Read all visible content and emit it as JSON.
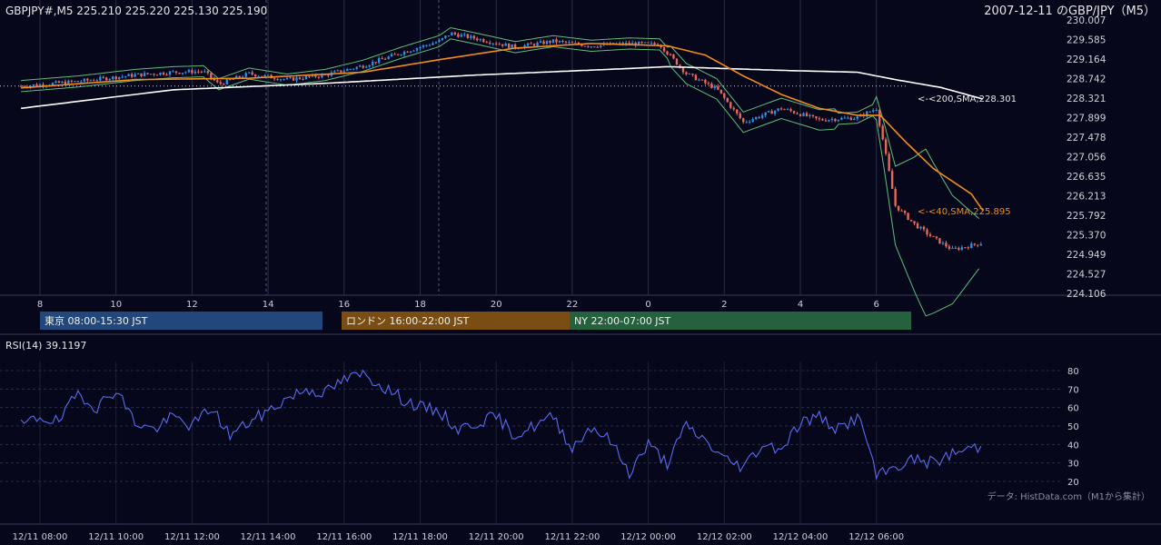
{
  "header": {
    "symbol_info": "GBPJPY#,M5 225.210 225.220 225.130 225.190",
    "title": "2007-12-11 のGBP/JPY（M5）"
  },
  "rsi": {
    "label": "RSI(14) 39.1197",
    "y_ticks": [
      "80",
      "70",
      "60",
      "50",
      "40",
      "30",
      "20"
    ]
  },
  "price_axis": {
    "ticks": [
      "230.007",
      "229.585",
      "229.164",
      "228.742",
      "228.321",
      "227.899",
      "227.478",
      "227.056",
      "226.635",
      "226.213",
      "225.792",
      "225.370",
      "224.949",
      "224.527",
      "224.106"
    ]
  },
  "hour_axis": {
    "ticks": [
      "8",
      "10",
      "12",
      "14",
      "16",
      "18",
      "20",
      "22",
      "0",
      "2",
      "4",
      "6"
    ]
  },
  "time_axis": {
    "ticks": [
      "12/11 08:00",
      "12/11 10:00",
      "12/11 12:00",
      "12/11 14:00",
      "12/11 16:00",
      "12/11 18:00",
      "12/11 20:00",
      "12/11 22:00",
      "12/12 00:00",
      "12/12 02:00",
      "12/12 04:00",
      "12/12 06:00"
    ]
  },
  "sessions": [
    {
      "label": "東京 08:00-15:30 JST",
      "color": "#22477a"
    },
    {
      "label": "ロンドン 16:00-22:00 JST",
      "color": "#7a4d12"
    },
    {
      "label": "NY 22:00-07:00 JST",
      "color": "#25613c"
    }
  ],
  "annotations": {
    "sma200": "<-<200,SMA,228.301",
    "sma40": "<-<40,SMA,225.895"
  },
  "source_note": "データ: HistData.com（M1から集計）",
  "colors": {
    "background": "#06071a",
    "bull": "#2f8fe6",
    "bear": "#e8685c",
    "sma40": "#f08c1e",
    "sma200": "#ffffff",
    "bands": "#5fbf7a",
    "rsi_line": "#5a6cf0"
  },
  "chart_data": [
    {
      "type": "candlestick",
      "title": "2007-12-11 のGBP/JPY（M5）",
      "x_unit": "hours since 12/11 07:30 JST",
      "ylim": [
        224.106,
        230.007
      ],
      "series": [
        {
          "name": "SMA 40",
          "last": 225.895
        },
        {
          "name": "SMA 200",
          "last": 228.301
        }
      ],
      "close_path": [
        [
          0,
          228.58
        ],
        [
          1.5,
          228.68
        ],
        [
          3,
          228.82
        ],
        [
          4,
          228.88
        ],
        [
          4.8,
          228.9
        ],
        [
          5.2,
          228.62
        ],
        [
          6,
          228.85
        ],
        [
          7,
          228.72
        ],
        [
          8,
          228.82
        ],
        [
          9,
          229.02
        ],
        [
          10,
          229.3
        ],
        [
          11,
          229.55
        ],
        [
          11.3,
          229.72
        ],
        [
          12,
          229.6
        ],
        [
          13,
          229.42
        ],
        [
          14,
          229.55
        ],
        [
          15,
          229.45
        ],
        [
          16,
          229.5
        ],
        [
          16.8,
          229.48
        ],
        [
          17.5,
          228.85
        ],
        [
          18.3,
          228.52
        ],
        [
          19,
          227.8
        ],
        [
          19.5,
          227.95
        ],
        [
          20,
          228.1
        ],
        [
          21,
          227.85
        ],
        [
          22,
          227.9
        ],
        [
          22.5,
          228.1
        ],
        [
          22.7,
          227.3
        ],
        [
          23,
          226.0
        ],
        [
          23.5,
          225.6
        ],
        [
          24,
          225.3
        ],
        [
          24.5,
          225.05
        ],
        [
          25.3,
          225.2
        ]
      ],
      "sma40_path": [
        [
          0,
          228.54
        ],
        [
          3,
          228.72
        ],
        [
          6,
          228.75
        ],
        [
          9,
          228.88
        ],
        [
          11,
          229.15
        ],
        [
          13,
          229.4
        ],
        [
          15,
          229.5
        ],
        [
          17,
          229.45
        ],
        [
          18,
          229.25
        ],
        [
          19,
          228.8
        ],
        [
          20,
          228.4
        ],
        [
          21,
          228.1
        ],
        [
          22,
          227.95
        ],
        [
          22.6,
          227.95
        ],
        [
          23.3,
          227.35
        ],
        [
          24,
          226.8
        ],
        [
          25,
          226.25
        ],
        [
          25.3,
          225.895
        ]
      ],
      "sma200_path": [
        [
          0,
          228.1
        ],
        [
          4,
          228.5
        ],
        [
          8,
          228.64
        ],
        [
          12,
          228.82
        ],
        [
          16,
          228.96
        ],
        [
          17,
          229.0
        ],
        [
          20,
          228.92
        ],
        [
          22,
          228.88
        ],
        [
          23,
          228.72
        ],
        [
          24.2,
          228.55
        ],
        [
          25.3,
          228.301
        ]
      ]
    },
    {
      "type": "line",
      "title": "RSI(14) 39.1197",
      "ylim": [
        15,
        85
      ],
      "y_ticks": [
        20,
        30,
        40,
        50,
        60,
        70,
        80
      ],
      "path": [
        [
          0,
          50
        ],
        [
          0.5,
          55
        ],
        [
          1,
          52
        ],
        [
          1.5,
          68
        ],
        [
          2,
          60
        ],
        [
          2.5,
          70
        ],
        [
          3,
          52
        ],
        [
          3.5,
          48
        ],
        [
          4,
          55
        ],
        [
          4.5,
          50
        ],
        [
          5,
          60
        ],
        [
          5.5,
          45
        ],
        [
          6,
          52
        ],
        [
          6.5,
          58
        ],
        [
          7,
          65
        ],
        [
          7.5,
          70
        ],
        [
          8,
          68
        ],
        [
          8.5,
          75
        ],
        [
          9,
          78
        ],
        [
          9.5,
          72
        ],
        [
          10,
          65
        ],
        [
          10.5,
          60
        ],
        [
          11,
          58
        ],
        [
          11.5,
          48
        ],
        [
          12,
          52
        ],
        [
          12.5,
          55
        ],
        [
          13,
          45
        ],
        [
          13.5,
          50
        ],
        [
          14,
          55
        ],
        [
          14.5,
          38
        ],
        [
          15,
          50
        ],
        [
          15.5,
          42
        ],
        [
          16,
          25
        ],
        [
          16.5,
          40
        ],
        [
          17,
          30
        ],
        [
          17.5,
          50
        ],
        [
          18,
          42
        ],
        [
          18.5,
          32
        ],
        [
          19,
          28
        ],
        [
          19.5,
          40
        ],
        [
          20,
          38
        ],
        [
          20.5,
          52
        ],
        [
          21,
          55
        ],
        [
          21.5,
          48
        ],
        [
          22,
          55
        ],
        [
          22.3,
          40
        ],
        [
          22.5,
          22
        ],
        [
          23,
          28
        ],
        [
          23.5,
          32
        ],
        [
          24,
          30
        ],
        [
          24.5,
          35
        ],
        [
          25,
          38
        ],
        [
          25.3,
          39.12
        ]
      ]
    }
  ]
}
